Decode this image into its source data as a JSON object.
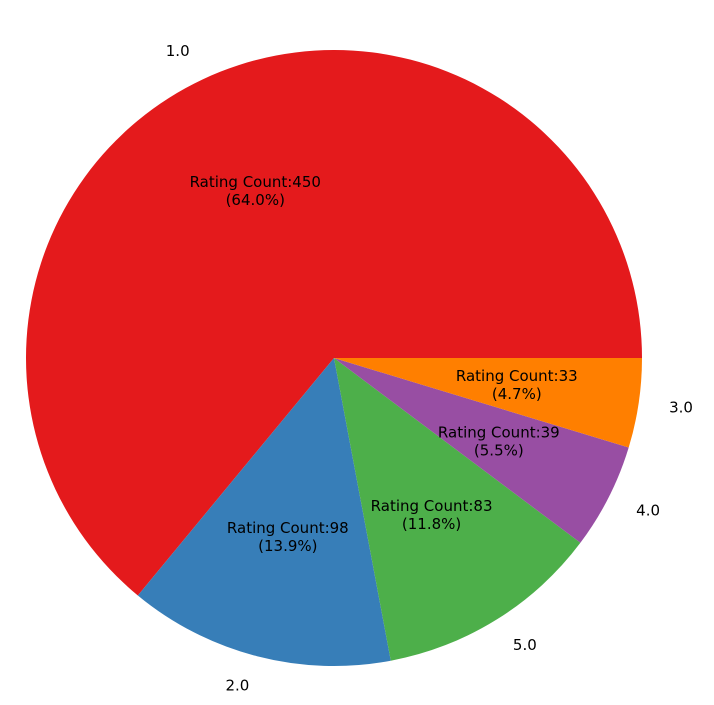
{
  "chart_data": {
    "type": "pie",
    "title": "",
    "categories": [
      "1.0",
      "2.0",
      "5.0",
      "4.0",
      "3.0"
    ],
    "values": [
      450,
      98,
      83,
      39,
      33
    ],
    "percent_labels": [
      "(64.0%)",
      "(13.9%)",
      "(11.8%)",
      "(5.5%)",
      "(4.7%)"
    ],
    "value_labels": [
      "Rating Count:450",
      "Rating Count:98",
      "Rating Count:83",
      "Rating Count:39",
      "Rating Count:33"
    ],
    "colors": [
      "#e41a1c",
      "#377eb8",
      "#4daf4a",
      "#984ea3",
      "#ff7f00"
    ],
    "start_angle_deg": 0,
    "direction": "counterclockwise",
    "legend": "none"
  }
}
